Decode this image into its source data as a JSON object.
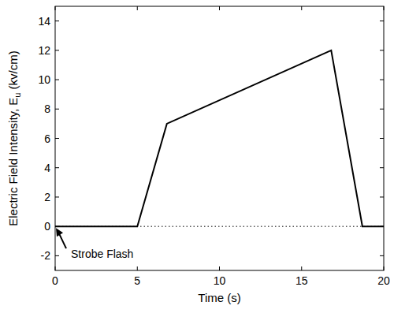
{
  "chart_data": {
    "type": "line",
    "xlabel": "Time (s)",
    "ylabel": {
      "text": "Electric Field Intensity, E",
      "subscript": "u",
      "suffix": " (kv/cm)"
    },
    "x": [
      0,
      5,
      6.8,
      16.8,
      18.7,
      20
    ],
    "series": [
      {
        "name": "E",
        "color": "#000000",
        "line_style": "solid",
        "values": [
          0,
          0,
          7,
          12,
          0,
          0
        ]
      }
    ],
    "xlim": [
      0,
      20
    ],
    "xticks": [
      0,
      5,
      10,
      15,
      20
    ],
    "ylim": [
      -3,
      15
    ],
    "yticks": [
      -2,
      0,
      2,
      4,
      6,
      8,
      10,
      12,
      14
    ],
    "reference_line": {
      "value": 0,
      "line_style": "dotted"
    },
    "annotations": [
      {
        "text": "Strobe Flash",
        "x": 0,
        "y": 0
      }
    ],
    "grid": false
  }
}
